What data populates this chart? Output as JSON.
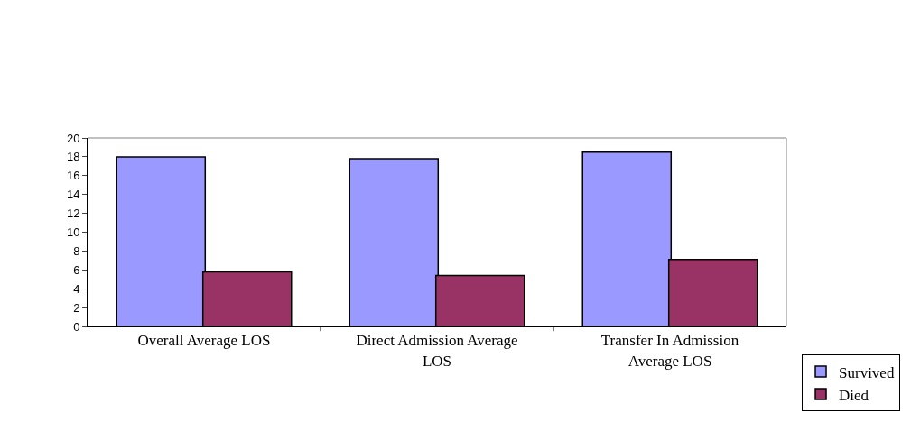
{
  "chart_data": {
    "type": "bar",
    "categories": [
      "Overall Average LOS",
      "Direct Admission Average LOS",
      "Transfer In Admission Average LOS"
    ],
    "series": [
      {
        "name": "Survived",
        "color": "#9999ff",
        "values": [
          18.0,
          17.8,
          18.5
        ]
      },
      {
        "name": "Died",
        "color": "#993366",
        "values": [
          5.8,
          5.4,
          7.1
        ]
      }
    ],
    "ylim": [
      0,
      20
    ],
    "yticks": [
      0,
      2,
      4,
      6,
      8,
      10,
      12,
      14,
      16,
      18,
      20
    ],
    "grid": false,
    "legend": "bottom right"
  }
}
